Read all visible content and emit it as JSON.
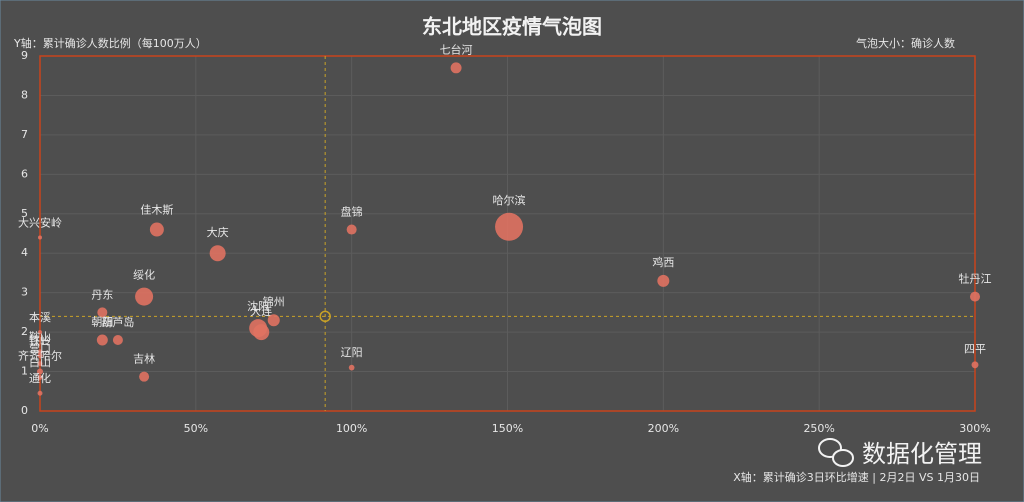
{
  "chart_data": {
    "type": "bubble",
    "title": "东北地区疫情气泡图",
    "y_label": "Y轴：累计确诊人数比例（每100万人）",
    "size_label": "气泡大小：确诊人数",
    "x_label": "X轴：累计确诊3日环比增速 | 2月2日 VS 1月30日",
    "watermark": "数据化管理",
    "categories": [
      "七台河",
      "哈尔滨",
      "鸡西",
      "牡丹江",
      "四平",
      "盘锦",
      "辽阳",
      "佳木斯",
      "大庆",
      "绥化",
      "丹东",
      "朝阳",
      "葫芦岛",
      "吉林",
      "沈阳",
      "大连",
      "锦州",
      "大兴安岭",
      "本溪",
      "鞍山",
      "铁岭",
      "营口",
      "齐齐哈尔",
      "白山",
      "通化"
    ],
    "x": [
      133.5,
      150.5,
      200,
      300,
      300,
      100,
      100,
      37.5,
      57,
      33.4,
      20,
      20,
      25,
      33.4,
      70,
      71,
      75,
      0,
      0,
      0,
      0,
      0,
      0,
      0,
      0
    ],
    "values": [
      8.7,
      4.67,
      3.3,
      2.9,
      1.17,
      4.6,
      1.1,
      4.6,
      4.0,
      2.9,
      2.5,
      1.8,
      1.8,
      0.87,
      2.1,
      2.0,
      2.3,
      4.4,
      2.0,
      1.5,
      1.4,
      1.2,
      1.0,
      0.85,
      0.45
    ],
    "sizes": [
      30,
      196,
      36,
      25,
      12,
      25,
      8,
      49,
      64,
      81,
      25,
      30,
      25,
      25,
      81,
      64,
      36,
      4,
      4,
      6,
      6,
      6,
      9,
      6,
      6
    ],
    "color": "#e07262",
    "reference": {
      "x": 91.5,
      "y": 2.4
    },
    "xlim": [
      0,
      300
    ],
    "ylim": [
      0,
      9
    ],
    "xticks": [
      {
        "value": 0,
        "label": "0%"
      },
      {
        "value": 50,
        "label": "50%"
      },
      {
        "value": 100,
        "label": "100%"
      },
      {
        "value": 150,
        "label": "150%"
      },
      {
        "value": 200,
        "label": "200%"
      },
      {
        "value": 250,
        "label": "250%"
      },
      {
        "value": 300,
        "label": "300%"
      }
    ],
    "yticks": [
      0,
      1,
      2,
      3,
      4,
      5,
      6,
      7,
      8,
      9
    ],
    "grid": true
  }
}
